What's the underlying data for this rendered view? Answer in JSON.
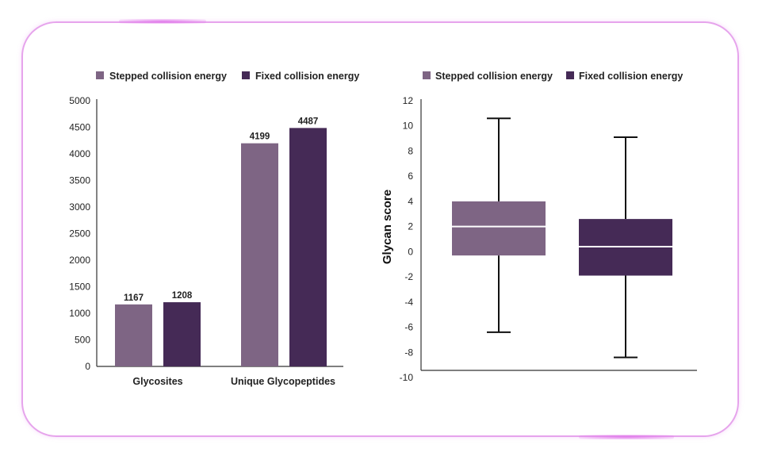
{
  "colors": {
    "stepped": "#7e6584",
    "fixed": "#452a56",
    "axis": "#333333",
    "frame": "#e6a4ec"
  },
  "chart_data": [
    {
      "type": "bar",
      "title": "",
      "legend": {
        "position": "top",
        "entries": [
          "Stepped collision energy",
          "Fixed collision energy"
        ]
      },
      "categories": [
        "Glycosites",
        "Unique Glycopeptides"
      ],
      "series": [
        {
          "name": "Stepped collision energy",
          "values": [
            1167,
            4199
          ],
          "labels": [
            "1167",
            "4199"
          ]
        },
        {
          "name": "Fixed collision energy",
          "values": [
            1208,
            4487
          ],
          "labels": [
            "1208",
            "4487"
          ]
        }
      ],
      "ylim": [
        0,
        5000
      ],
      "yticks": [
        "0",
        "500",
        "1000",
        "1500",
        "2000",
        "2500",
        "3000",
        "3500",
        "4000",
        "4500",
        "5000"
      ],
      "xlabel": "",
      "ylabel": "",
      "grid": false
    },
    {
      "type": "box",
      "title": "",
      "legend": {
        "position": "top",
        "entries": [
          "Stepped collision energy",
          "Fixed collision energy"
        ]
      },
      "ylabel": "Glycan score",
      "xlabel": "",
      "ylim": [
        -10,
        12
      ],
      "yticks": [
        "-10",
        "-8",
        "-6",
        "-4",
        "-2",
        "0",
        "2",
        "4",
        "6",
        "8",
        "10",
        "12"
      ],
      "series": [
        {
          "name": "Stepped collision energy",
          "min": -6.4,
          "q1": -0.3,
          "median": 2.0,
          "q3": 4.0,
          "max": 10.6
        },
        {
          "name": "Fixed collision energy",
          "min": -8.4,
          "q1": -1.9,
          "median": 0.4,
          "q3": 2.6,
          "max": 9.1
        }
      ],
      "grid": false
    }
  ]
}
